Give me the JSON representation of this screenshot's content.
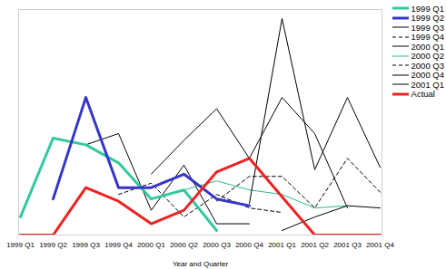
{
  "chart_data": {
    "type": "line",
    "xlabel": "Year and Quarter",
    "categories": [
      "1999 Q1",
      "1999 Q2",
      "1999 Q3",
      "1999 Q4",
      "2000 Q1",
      "2000 Q2",
      "2000 Q3",
      "2000 Q4",
      "2001 Q1",
      "2001 Q2",
      "2001 Q3",
      "2001 Q4"
    ],
    "series": [
      {
        "name": "1999 Q1",
        "color": "#33c99f",
        "line_style": "thick",
        "values": [
          8,
          43,
          40,
          32,
          16,
          20,
          2,
          null,
          null,
          null,
          null,
          null
        ]
      },
      {
        "name": "1999 Q2",
        "color": "#3535c8",
        "line_style": "thick",
        "values": [
          null,
          16,
          61,
          21,
          21,
          27,
          16,
          13,
          null,
          null,
          null,
          null
        ]
      },
      {
        "name": "1999 Q3",
        "color": "#000000",
        "line_style": "solid",
        "values": [
          null,
          null,
          40,
          45,
          11,
          31,
          5,
          5,
          null,
          null,
          null,
          null
        ]
      },
      {
        "name": "1999 Q4",
        "color": "#000000",
        "line_style": "dashed",
        "values": [
          null,
          null,
          null,
          18,
          23,
          8,
          18,
          12,
          10,
          null,
          null,
          null
        ]
      },
      {
        "name": "2000 Q1",
        "color": "#000000",
        "line_style": "solid",
        "values": [
          null,
          null,
          null,
          null,
          27,
          42,
          56,
          34,
          61,
          45,
          12,
          null
        ]
      },
      {
        "name": "2000 Q2",
        "color": "#2bb893",
        "line_style": "solid",
        "values": [
          null,
          null,
          null,
          null,
          null,
          20,
          24,
          20,
          18,
          12,
          13,
          null
        ]
      },
      {
        "name": "2000 Q3",
        "color": "#000000",
        "line_style": "dashed",
        "values": [
          null,
          null,
          null,
          null,
          null,
          null,
          15,
          26,
          26,
          12,
          34,
          19
        ]
      },
      {
        "name": "2000 Q4",
        "color": "#000000",
        "line_style": "solid",
        "values": [
          null,
          null,
          null,
          null,
          null,
          null,
          null,
          14,
          96,
          29,
          61,
          30
        ]
      },
      {
        "name": "2001 Q1",
        "color": "#000000",
        "line_style": "solid",
        "values": [
          null,
          null,
          null,
          null,
          null,
          null,
          null,
          null,
          2,
          8,
          13,
          12
        ]
      },
      {
        "name": "Actual",
        "color": "#ee2222",
        "line_style": "thick",
        "values": [
          0,
          0,
          21,
          15,
          5,
          11,
          28,
          34,
          17,
          0,
          0,
          0
        ]
      }
    ],
    "ylim": [
      0,
      100
    ],
    "yticks": [],
    "tick_labels": "x",
    "legend": "top-right"
  }
}
